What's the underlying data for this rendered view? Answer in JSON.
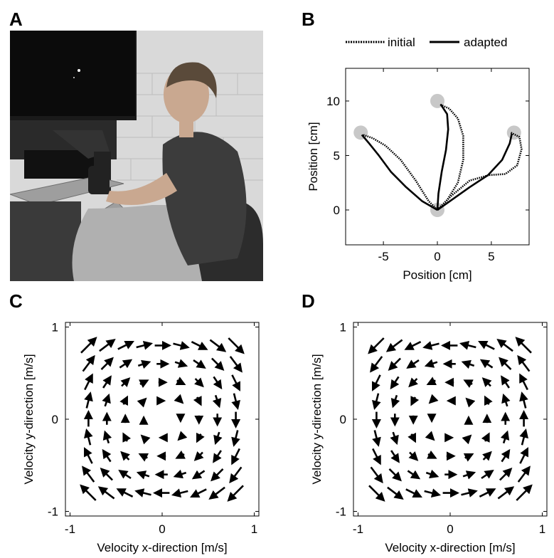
{
  "panels": {
    "a": "A",
    "b": "B",
    "c": "C",
    "d": "D"
  },
  "photo": {
    "description_icon": "photo-of-person-seated-at-robotic-manipulandum"
  },
  "chart_data": [
    {
      "type": "line",
      "panel": "B",
      "xlabel": "Position [cm]",
      "ylabel": "Position [cm]",
      "xlim": [
        -8.5,
        8.5
      ],
      "ylim": [
        -3.2,
        13
      ],
      "xticks": [
        -5,
        0,
        5
      ],
      "yticks": [
        0,
        5,
        10
      ],
      "legend_placement": "top",
      "targets": [
        {
          "x": 0,
          "y": 0
        },
        {
          "x": -7.1,
          "y": 7.1
        },
        {
          "x": 0,
          "y": 10
        },
        {
          "x": 7.1,
          "y": 7.1
        }
      ],
      "series": [
        {
          "name": "initial",
          "style": "dotted",
          "paths": [
            [
              [
                0,
                0
              ],
              [
                -0.8,
                0.8
              ],
              [
                -2.0,
                2.7
              ],
              [
                -3.4,
                4.6
              ],
              [
                -4.8,
                5.9
              ],
              [
                -6.0,
                6.6
              ],
              [
                -6.9,
                6.9
              ]
            ],
            [
              [
                0,
                0
              ],
              [
                0.9,
                0.9
              ],
              [
                1.9,
                2.5
              ],
              [
                2.4,
                4.6
              ],
              [
                2.4,
                6.8
              ],
              [
                1.9,
                8.4
              ],
              [
                1.1,
                9.3
              ],
              [
                0.2,
                9.7
              ]
            ],
            [
              [
                0,
                0
              ],
              [
                1.3,
                1.3
              ],
              [
                3.0,
                2.7
              ],
              [
                4.8,
                3.2
              ],
              [
                6.3,
                3.3
              ],
              [
                7.4,
                4.1
              ],
              [
                7.8,
                5.6
              ],
              [
                7.6,
                6.7
              ],
              [
                6.8,
                7.1
              ]
            ]
          ]
        },
        {
          "name": "adapted",
          "style": "solid",
          "paths": [
            [
              [
                0,
                0
              ],
              [
                -1.4,
                0.8
              ],
              [
                -2.9,
                2.1
              ],
              [
                -4.3,
                3.5
              ],
              [
                -5.5,
                5.1
              ],
              [
                -6.4,
                6.2
              ],
              [
                -7.0,
                6.9
              ]
            ],
            [
              [
                0,
                0
              ],
              [
                0.1,
                1.5
              ],
              [
                0.4,
                3.5
              ],
              [
                0.8,
                5.5
              ],
              [
                1.0,
                7.4
              ],
              [
                0.9,
                8.8
              ],
              [
                0.3,
                9.7
              ]
            ],
            [
              [
                0,
                0
              ],
              [
                1.3,
                0.9
              ],
              [
                3.0,
                2.1
              ],
              [
                4.7,
                3.2
              ],
              [
                6.0,
                4.6
              ],
              [
                6.7,
                6.1
              ],
              [
                6.9,
                7.0
              ]
            ]
          ]
        }
      ]
    },
    {
      "type": "quiver",
      "panel": "C",
      "rotation": "clockwise",
      "xlabel": "Velocity x-direction [m/s]",
      "ylabel": "Velocity y-direction [m/s]",
      "xlim": [
        -1.05,
        1.05
      ],
      "ylim": [
        -1.05,
        1.05
      ],
      "xticks": [
        -1,
        0,
        1
      ],
      "yticks": [
        -1,
        0,
        1
      ],
      "grid_points": [
        -0.8,
        -0.6,
        -0.4,
        -0.2,
        0,
        0.2,
        0.4,
        0.6,
        0.8
      ],
      "min_radius": 0.15,
      "max_radius": 1.15,
      "gain": 0.2
    },
    {
      "type": "quiver",
      "panel": "D",
      "rotation": "counterclockwise",
      "xlabel": "Velocity x-direction [m/s]",
      "ylabel": "Velocity y-direction [m/s]",
      "xlim": [
        -1.05,
        1.05
      ],
      "ylim": [
        -1.05,
        1.05
      ],
      "xticks": [
        -1,
        0,
        1
      ],
      "yticks": [
        -1,
        0,
        1
      ],
      "grid_points": [
        -0.8,
        -0.6,
        -0.4,
        -0.2,
        0,
        0.2,
        0.4,
        0.6,
        0.8
      ],
      "min_radius": 0.15,
      "max_radius": 1.15,
      "gain": 0.2
    }
  ]
}
